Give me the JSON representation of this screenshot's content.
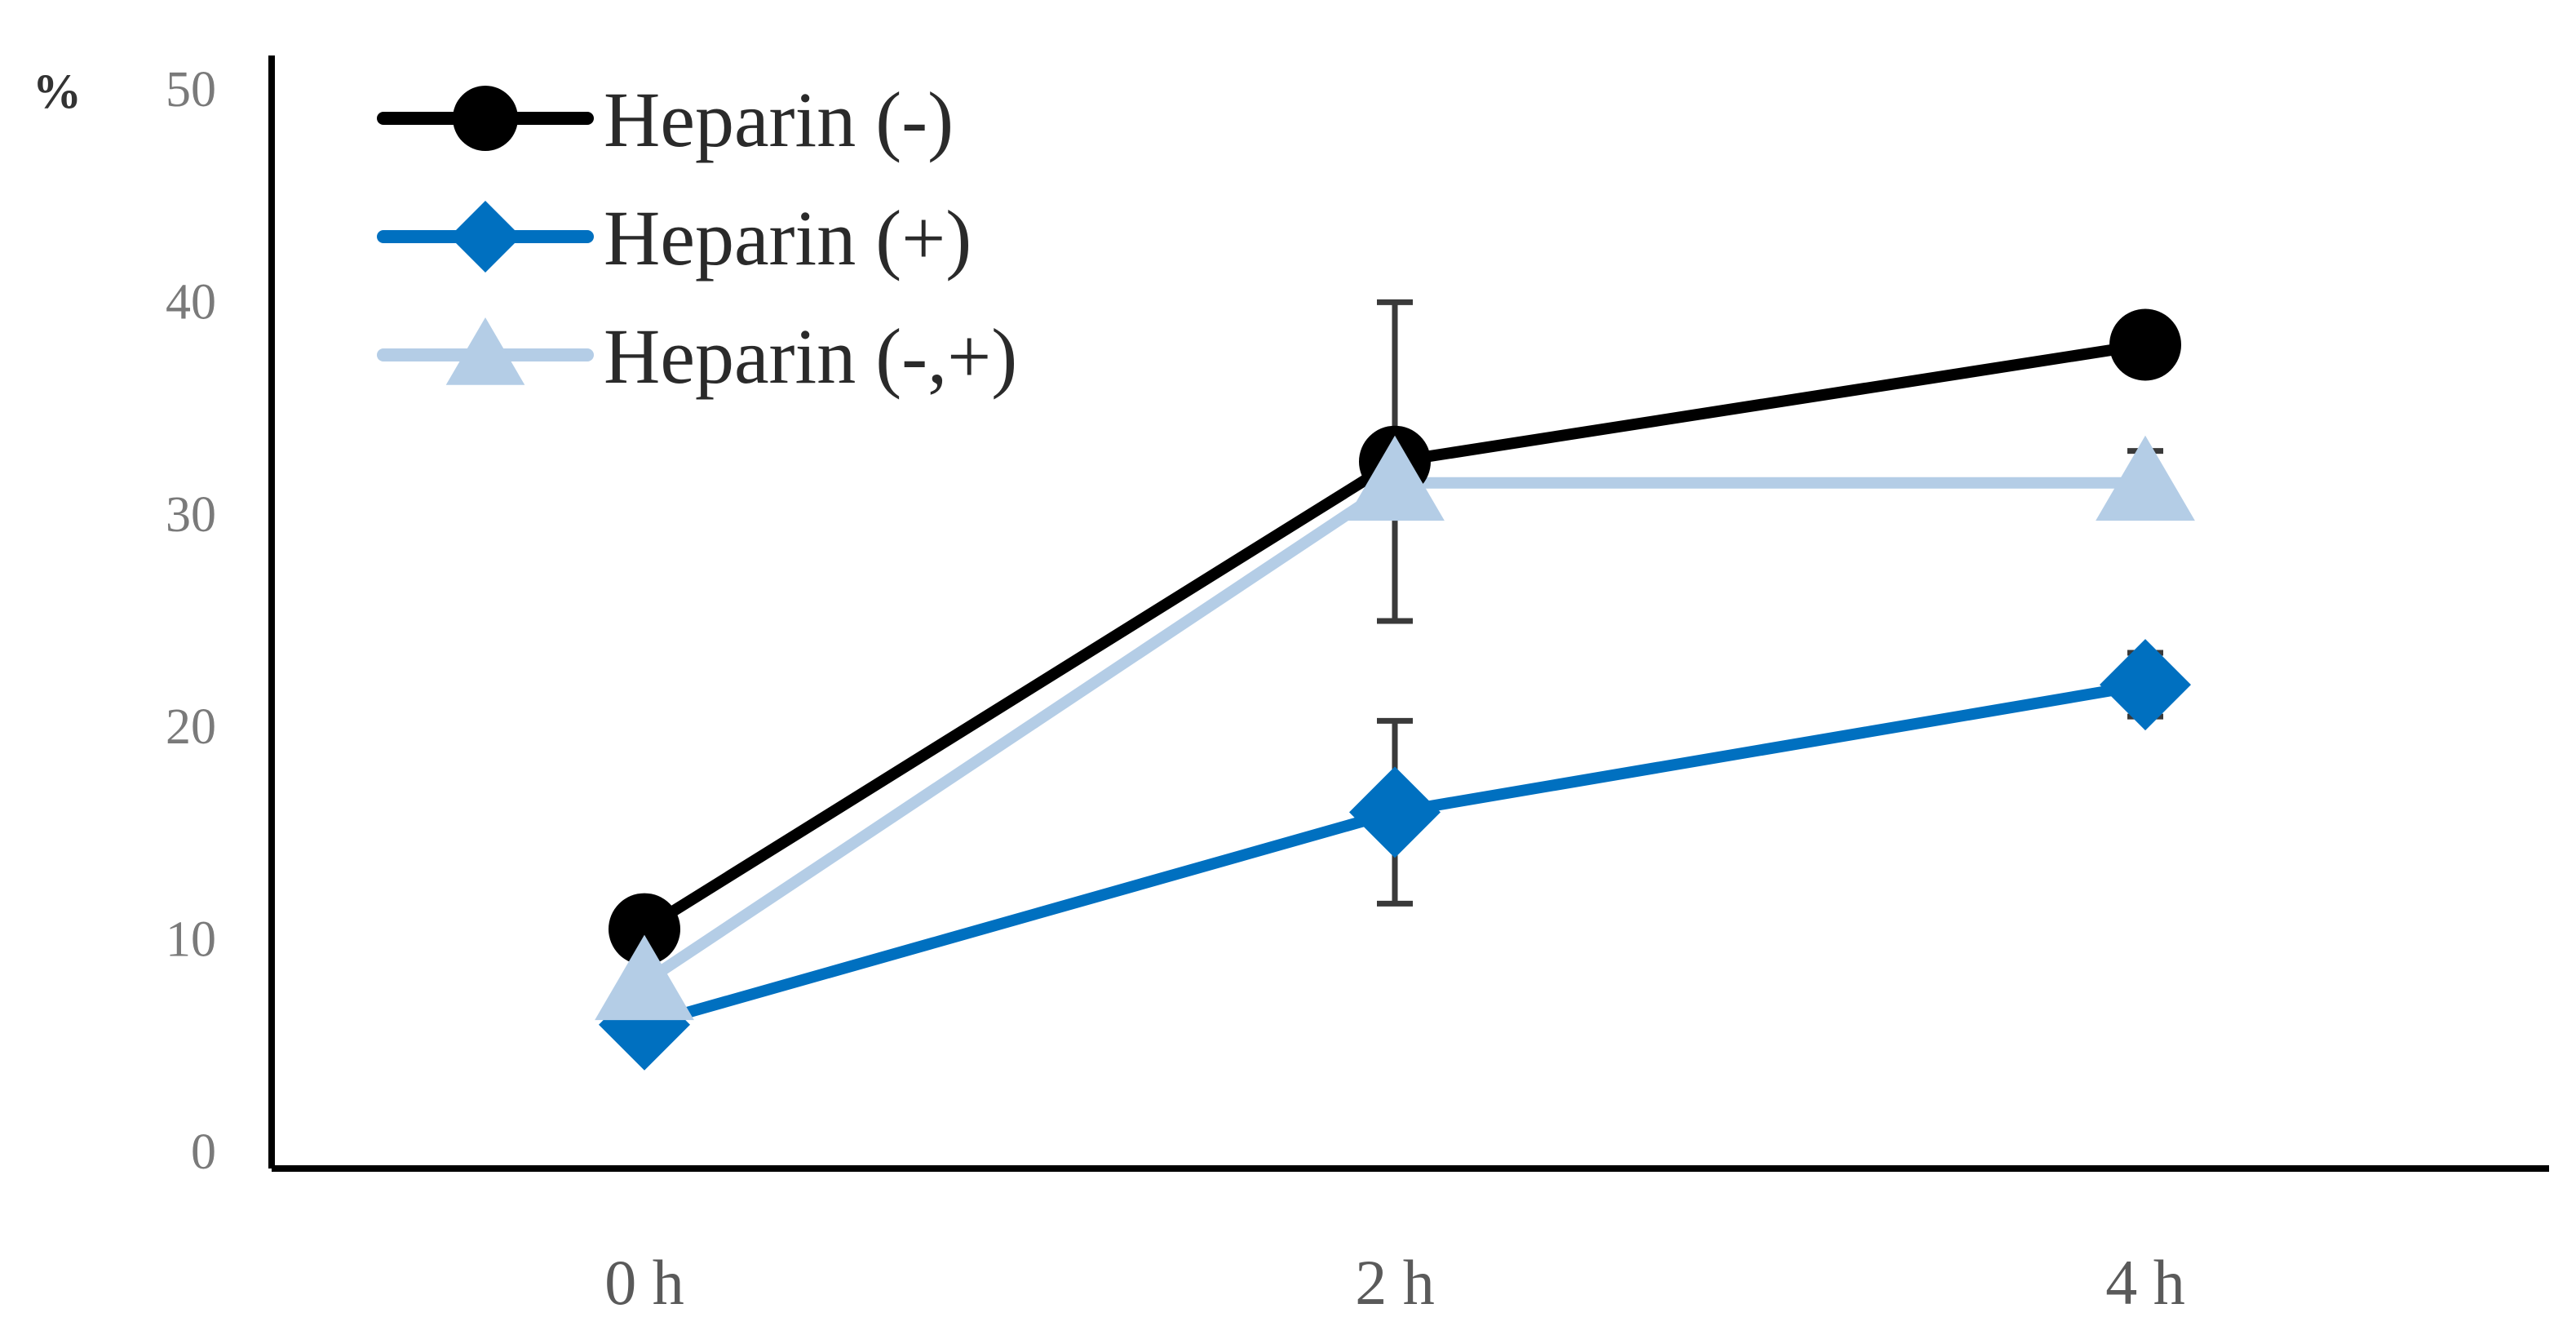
{
  "chart_data": {
    "type": "line",
    "title": "",
    "xlabel": "",
    "ylabel": "%",
    "ylim": [
      0,
      50
    ],
    "yticks": [
      0,
      10,
      20,
      30,
      40,
      50
    ],
    "categories": [
      "0 h",
      "2 h",
      "4 h"
    ],
    "grid": false,
    "legend_position": "top-left",
    "series": [
      {
        "name": "Heparin (-)",
        "color": "#000000",
        "marker": "circle",
        "values": [
          10.5,
          32.5,
          38
        ],
        "error": [
          null,
          7.5,
          1
        ]
      },
      {
        "name": "Heparin (+)",
        "color": "#0070c0",
        "marker": "diamond",
        "values": [
          6,
          16,
          22
        ],
        "error": [
          null,
          4.3,
          1.5
        ]
      },
      {
        "name": "Heparin (-,+)",
        "color": "#b4cde6",
        "marker": "triangle",
        "values": [
          8,
          31.5,
          31.5
        ],
        "error": [
          null,
          null,
          1.5
        ]
      }
    ]
  }
}
